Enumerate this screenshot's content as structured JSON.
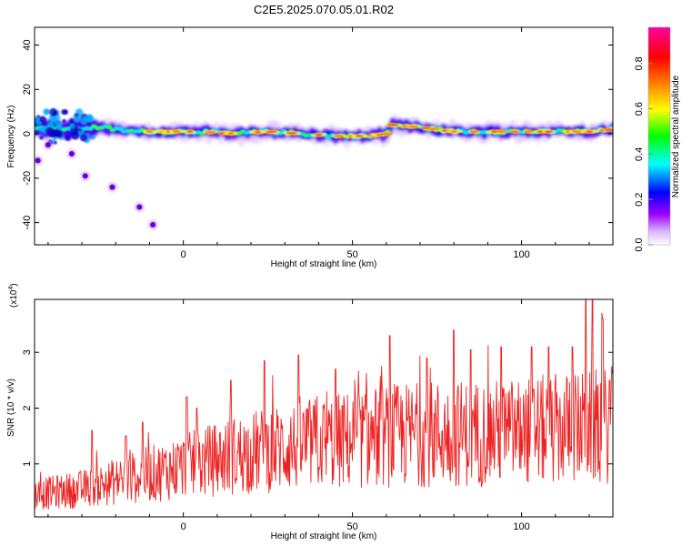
{
  "title": "C2E5.2025.070.05.01.R02",
  "chart_data": [
    {
      "type": "heatmap",
      "name": "spectrogram",
      "xlabel": "Height of straight line (km)",
      "ylabel": "Frequency (Hz)",
      "xlim": [
        -44,
        127
      ],
      "ylim": [
        -50,
        48
      ],
      "xticks": [
        0,
        50,
        100
      ],
      "yticks": [
        -40,
        -20,
        0,
        20,
        40
      ],
      "colorbar": {
        "label": "Normalized spectral amplitude",
        "range": [
          0.0,
          0.96
        ],
        "ticks": [
          0.0,
          0.2,
          0.4,
          0.6,
          0.8
        ],
        "colors": [
          "#ffffff",
          "#a000ff",
          "#0000ff",
          "#00ffff",
          "#00ff00",
          "#ffff00",
          "#ff8000",
          "#ff0000",
          "#ff00a0"
        ]
      },
      "ridge": {
        "x": [
          -44,
          -35,
          -25,
          -15,
          -5,
          5,
          15,
          25,
          35,
          45,
          55,
          60,
          62,
          70,
          80,
          90,
          100,
          110,
          120,
          127
        ],
        "frequency_hz": [
          3,
          2,
          3,
          1,
          1,
          1,
          0,
          1,
          0,
          -1,
          -1,
          0,
          4,
          3,
          1,
          1,
          1,
          1,
          1,
          2
        ]
      },
      "stray_points": [
        {
          "x": -43,
          "frequency_hz": -12
        },
        {
          "x": -40,
          "frequency_hz": -5
        },
        {
          "x": -33,
          "frequency_hz": -9
        },
        {
          "x": -29,
          "frequency_hz": -19
        },
        {
          "x": -21,
          "frequency_hz": -24
        },
        {
          "x": -13,
          "frequency_hz": -33
        },
        {
          "x": -9,
          "frequency_hz": -41
        }
      ]
    },
    {
      "type": "line",
      "name": "snr",
      "xlabel": "Height of straight line (km)",
      "ylabel": "SNR (10 * v/v)",
      "scale_label": "(x10",
      "scale_exponent": "4",
      "xlim": [
        -44,
        127
      ],
      "ylim": [
        0.05,
        3.95
      ],
      "xticks": [
        0,
        50,
        100
      ],
      "yticks": [
        1,
        2,
        3
      ],
      "color": "#ee2222",
      "trend": {
        "x": [
          -44,
          -30,
          -15,
          0,
          15,
          30,
          45,
          60,
          75,
          90,
          105,
          120,
          127
        ],
        "y": [
          0.45,
          0.55,
          0.75,
          0.95,
          1.15,
          1.3,
          1.4,
          1.5,
          1.55,
          1.55,
          1.6,
          1.65,
          1.7
        ]
      },
      "peaks": [
        {
          "x": -27,
          "y": 1.6
        },
        {
          "x": -17,
          "y": 1.5
        },
        {
          "x": -12,
          "y": 1.75
        },
        {
          "x": 1,
          "y": 2.2
        },
        {
          "x": 4,
          "y": 2.0
        },
        {
          "x": 14,
          "y": 2.5
        },
        {
          "x": 24,
          "y": 2.85
        },
        {
          "x": 34,
          "y": 2.95
        },
        {
          "x": 45,
          "y": 2.7
        },
        {
          "x": 61,
          "y": 3.3
        },
        {
          "x": 72,
          "y": 2.9
        },
        {
          "x": 80,
          "y": 3.4
        },
        {
          "x": 85,
          "y": 3.05
        },
        {
          "x": 94,
          "y": 3.1
        },
        {
          "x": 103,
          "y": 3.1
        },
        {
          "x": 108,
          "y": 3.1
        },
        {
          "x": 115,
          "y": 3.1
        },
        {
          "x": 119,
          "y": 3.95
        },
        {
          "x": 121,
          "y": 3.95
        },
        {
          "x": 124,
          "y": 3.6
        },
        {
          "x": 126,
          "y": 2.5
        }
      ]
    }
  ]
}
